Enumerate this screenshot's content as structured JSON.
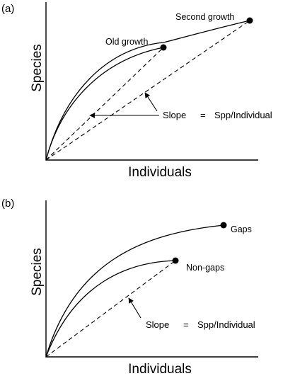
{
  "panel_a": {
    "panel_label": "(a)",
    "ylabel": "Species",
    "xlabel": "Individuals",
    "curves": [
      {
        "label": "Second growth"
      },
      {
        "label": "Old growth"
      }
    ],
    "annotation": {
      "slope_word": "Slope",
      "equals": "=",
      "formula": "Spp/Individual"
    }
  },
  "panel_b": {
    "panel_label": "(b)",
    "ylabel": "Species",
    "xlabel": "Individuals",
    "curves": [
      {
        "label": "Gaps"
      },
      {
        "label": "Non-gaps"
      }
    ],
    "annotation": {
      "slope_word": "Slope",
      "equals": "=",
      "formula": "Spp/Individual"
    }
  }
}
